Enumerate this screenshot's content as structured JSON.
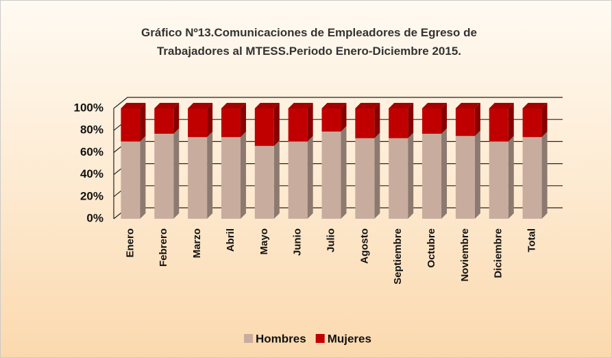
{
  "chart_data": {
    "type": "bar",
    "stacked": true,
    "title": "Gráfico Nº13.Comunicaciones de Empleadores de Egreso de Trabajadores al MTESS.Periodo Enero-Diciembre 2015.",
    "categories": [
      "Enero",
      "Febrero",
      "Marzo",
      "Abril",
      "Mayo",
      "Junio",
      "Julio",
      "Agosto",
      "Septiembre",
      "Octubre",
      "Noviembre",
      "Diciembre",
      "Total"
    ],
    "series": [
      {
        "name": "Hombres",
        "color": "#c8ad9f",
        "values": [
          70,
          77,
          74,
          74,
          66,
          70,
          79,
          73,
          73,
          77,
          75,
          70,
          74
        ]
      },
      {
        "name": "Mujeres",
        "color": "#c00000",
        "values": [
          30,
          23,
          26,
          26,
          34,
          30,
          21,
          27,
          27,
          23,
          25,
          30,
          26
        ]
      }
    ],
    "ylim": [
      0,
      100
    ],
    "yticks": [
      {
        "value": 0,
        "label": "0%"
      },
      {
        "value": 20,
        "label": "20%"
      },
      {
        "value": 40,
        "label": "40%"
      },
      {
        "value": 60,
        "label": "60%"
      },
      {
        "value": 80,
        "label": "80%"
      },
      {
        "value": 100,
        "label": "100%"
      }
    ],
    "grid": true,
    "legend": "bottom"
  }
}
